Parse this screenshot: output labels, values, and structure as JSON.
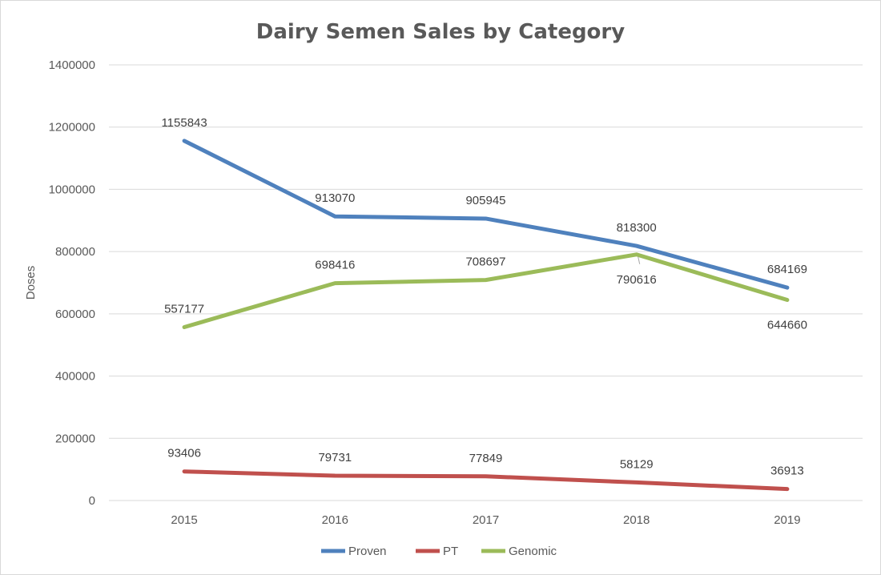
{
  "chart_data": {
    "type": "line",
    "title": "Dairy Semen Sales by Category",
    "xlabel": "",
    "ylabel": "Doses",
    "categories": [
      "2015",
      "2016",
      "2017",
      "2018",
      "2019"
    ],
    "ylim": [
      0,
      1400000
    ],
    "yticks": [
      0,
      200000,
      400000,
      600000,
      800000,
      1000000,
      1200000,
      1400000
    ],
    "ytick_labels": [
      "0",
      "200000",
      "400000",
      "600000",
      "800000",
      "1000000",
      "1200000",
      "1400000"
    ],
    "grid": true,
    "legend_position": "bottom",
    "series": [
      {
        "name": "Proven",
        "color": "#4f81bd",
        "values": [
          1155843,
          913070,
          905945,
          818300,
          684169
        ],
        "labels": [
          "1155843",
          "913070",
          "905945",
          "818300",
          "684169"
        ]
      },
      {
        "name": "PT",
        "color": "#c0504d",
        "values": [
          93406,
          79731,
          77849,
          58129,
          36913
        ],
        "labels": [
          "93406",
          "79731",
          "77849",
          "58129",
          "36913"
        ]
      },
      {
        "name": "Genomic",
        "color": "#9bbb59",
        "values": [
          557177,
          698416,
          708697,
          790616,
          644660
        ],
        "labels": [
          "557177",
          "698416",
          "708697",
          "790616",
          "644660"
        ]
      }
    ]
  }
}
